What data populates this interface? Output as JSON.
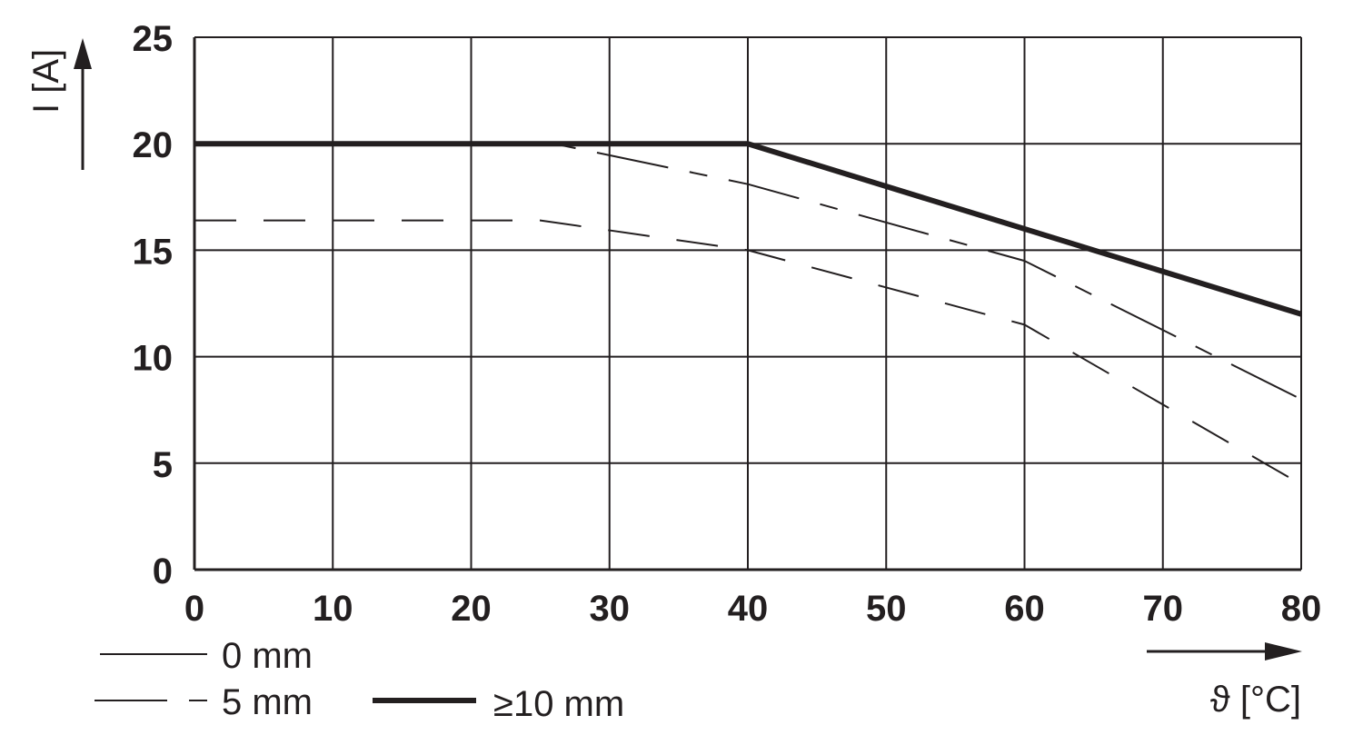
{
  "chart_data": {
    "type": "line",
    "xlabel": "ϑ [°C]",
    "ylabel": "I [A]",
    "xlim": [
      0,
      80
    ],
    "ylim": [
      0,
      25
    ],
    "x_ticks": [
      "0",
      "10",
      "20",
      "30",
      "40",
      "50",
      "60",
      "70",
      "80"
    ],
    "y_ticks": [
      "0",
      "5",
      "10",
      "15",
      "20",
      "25"
    ],
    "grid": true,
    "series": [
      {
        "name": "0 mm",
        "style": "dashed",
        "points": [
          [
            0,
            16.4
          ],
          [
            25,
            16.4
          ],
          [
            40,
            15.0
          ],
          [
            60,
            11.5
          ],
          [
            80,
            4.0
          ]
        ]
      },
      {
        "name": "5 mm",
        "style": "dash-dot",
        "points": [
          [
            0,
            20.0
          ],
          [
            26,
            20.0
          ],
          [
            40,
            18.1
          ],
          [
            60,
            14.5
          ],
          [
            80,
            8.0
          ]
        ]
      },
      {
        "name": "≥10 mm",
        "style": "solid-bold",
        "points": [
          [
            0,
            20.0
          ],
          [
            40,
            20.0
          ],
          [
            80,
            12.0
          ]
        ]
      }
    ],
    "legend": [
      "0 mm",
      "5 mm",
      "≥10 mm"
    ],
    "legend_position": "bottom-left"
  },
  "colors": {
    "ink": "#231f20",
    "background": "#ffffff"
  }
}
